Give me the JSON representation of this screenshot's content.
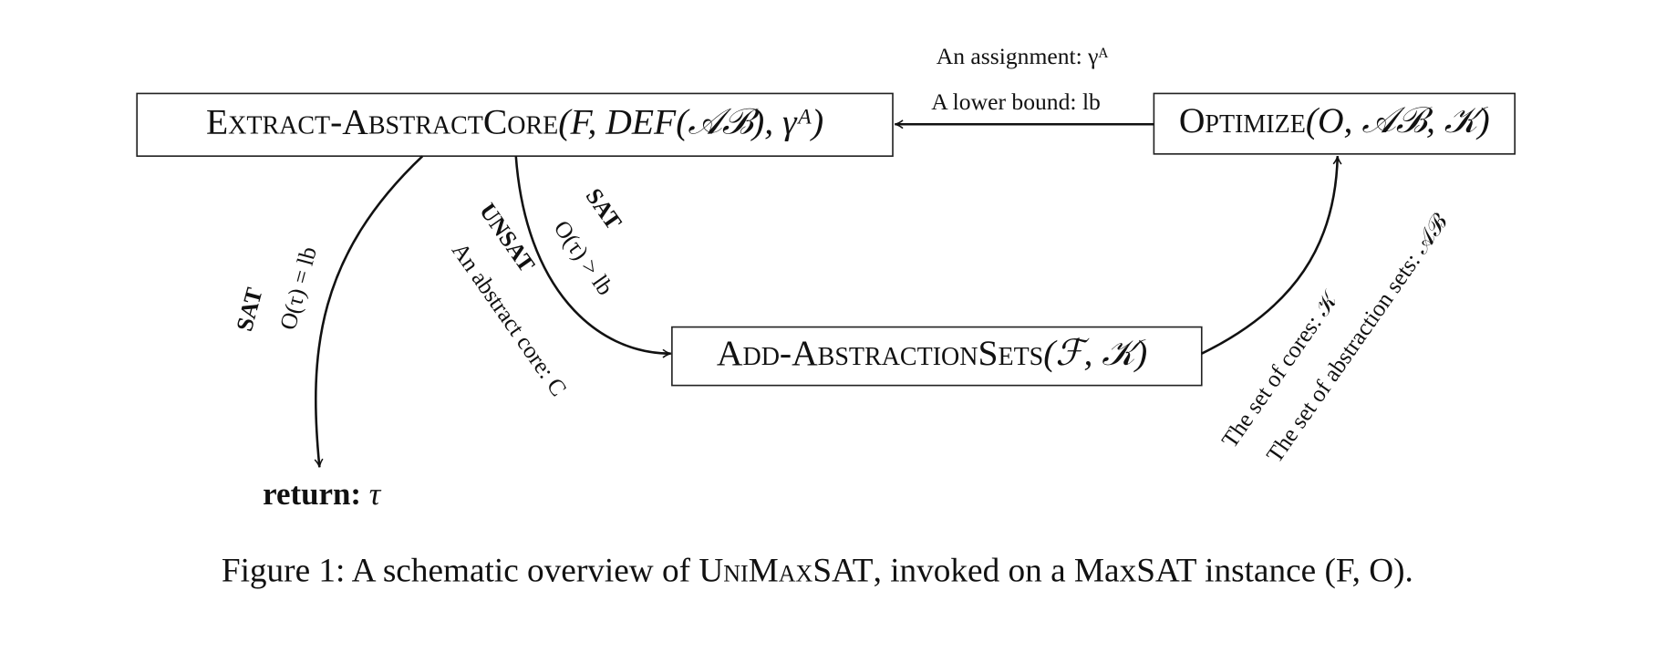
{
  "nodes": [
    {
      "name": "Extract-AbstractCore",
      "args": "(F, DEF(𝒜ℬ), γᴬ)"
    },
    {
      "name": "Optimize",
      "args": "(O, 𝒜ℬ, 𝒦)"
    },
    {
      "name": "Add-AbstractionSets",
      "args": "(ℱ, 𝒦)"
    },
    {
      "name": "return:",
      "args": "τ"
    }
  ],
  "edges": [
    {
      "labels": [
        "An assignment: γᴬ",
        "A lower bound: lb"
      ]
    },
    {
      "labels": [
        "SAT",
        "O(τ) = lb"
      ]
    },
    {
      "labels": [
        "UNSAT",
        "An abstract core: C"
      ]
    },
    {
      "labels": [
        "SAT",
        "O(τ) > lb"
      ]
    },
    {
      "labels": [
        "The set of cores: 𝒦",
        "The set of abstraction sets: 𝒜ℬ"
      ]
    }
  ],
  "caption": {
    "prefix": "Figure 1: A schematic overview of ",
    "name": "UniMaxSAT",
    "suffix": ", invoked on a MaxSAT instance (F, O)."
  }
}
